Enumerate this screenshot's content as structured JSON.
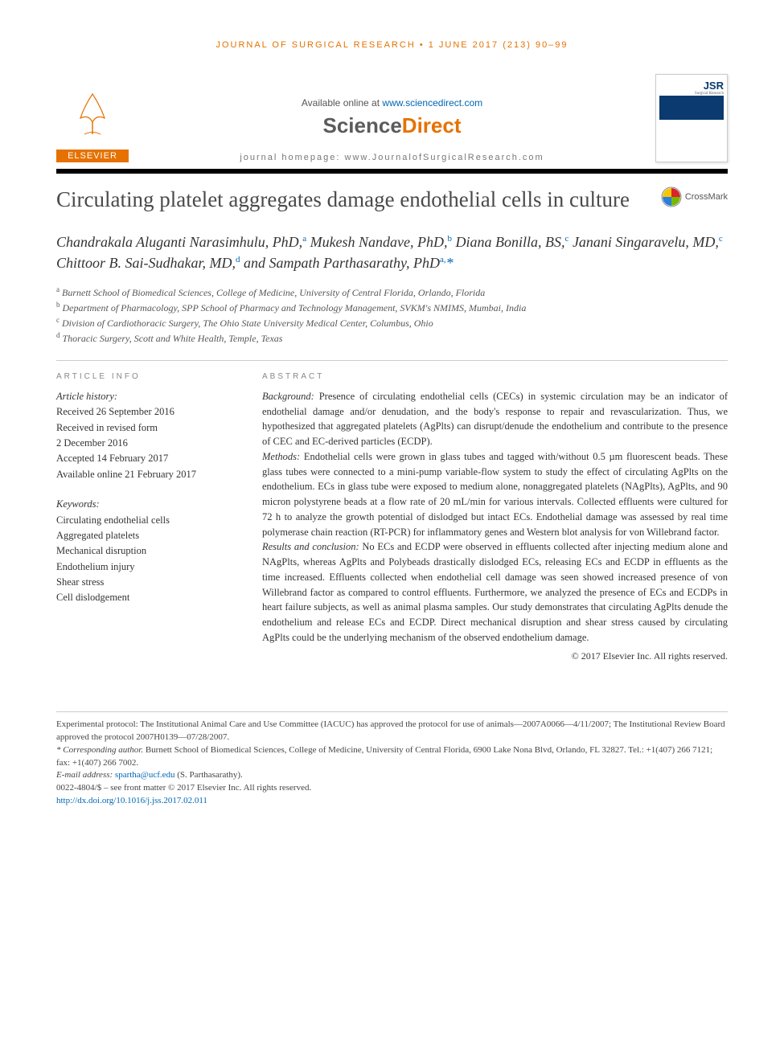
{
  "running_head": "JOURNAL OF SURGICAL RESEARCH • 1 JUNE 2017 (213) 90–99",
  "masthead": {
    "elsevier": "ELSEVIER",
    "available": "Available online at ",
    "sd_url": "www.sciencedirect.com",
    "sd_name_a": "Science",
    "sd_name_b": "Direct",
    "homepage_label": "journal homepage: ",
    "homepage_url": "www.JournalofSurgicalResearch.com",
    "jsr": "JSR",
    "jsr_sub": "Surgical Research"
  },
  "title": "Circulating platelet aggregates damage endothelial cells in culture",
  "crossmark": "CrossMark",
  "authors_html": "Chandrakala Aluganti Narasimhulu, PhD,<sup>a</sup> Mukesh Nandave, PhD,<sup>b</sup> Diana Bonilla, BS,<sup>c</sup> Janani Singaravelu, MD,<sup>c</sup> Chittoor B. Sai-Sudhakar, MD,<sup>d</sup> and Sampath Parthasarathy, PhD<sup>a,</sup><span class='ast'>*</span>",
  "affiliations": [
    {
      "sup": "a",
      "text": "Burnett School of Biomedical Sciences, College of Medicine, University of Central Florida, Orlando, Florida"
    },
    {
      "sup": "b",
      "text": "Department of Pharmacology, SPP School of Pharmacy and Technology Management, SVKM's NMIMS, Mumbai, India"
    },
    {
      "sup": "c",
      "text": "Division of Cardiothoracic Surgery, The Ohio State University Medical Center, Columbus, Ohio"
    },
    {
      "sup": "d",
      "text": "Thoracic Surgery, Scott and White Health, Temple, Texas"
    }
  ],
  "article_info_head": "ARTICLE INFO",
  "abstract_head": "ABSTRACT",
  "history_label": "Article history:",
  "history": [
    "Received 26 September 2016",
    "Received in revised form",
    "2 December 2016",
    "Accepted 14 February 2017",
    "Available online 21 February 2017"
  ],
  "keywords_label": "Keywords:",
  "keywords": [
    "Circulating endothelial cells",
    "Aggregated platelets",
    "Mechanical disruption",
    "Endothelium injury",
    "Shear stress",
    "Cell dislodgement"
  ],
  "abstract": {
    "background_label": "Background:",
    "background": " Presence of circulating endothelial cells (CECs) in systemic circulation may be an indicator of endothelial damage and/or denudation, and the body's response to repair and revascularization. Thus, we hypothesized that aggregated platelets (AgPlts) can disrupt/denude the endothelium and contribute to the presence of CEC and EC-derived particles (ECDP).",
    "methods_label": "Methods:",
    "methods": " Endothelial cells were grown in glass tubes and tagged with/without 0.5 µm fluorescent beads. These glass tubes were connected to a mini-pump variable-flow system to study the effect of circulating AgPlts on the endothelium. ECs in glass tube were exposed to medium alone, nonaggregated platelets (NAgPlts), AgPlts, and 90 micron polystyrene beads at a flow rate of 20 mL/min for various intervals. Collected effluents were cultured for 72 h to analyze the growth potential of dislodged but intact ECs. Endothelial damage was assessed by real time polymerase chain reaction (RT-PCR) for inflammatory genes and Western blot analysis for von Willebrand factor.",
    "results_label": "Results and conclusion:",
    "results": " No ECs and ECDP were observed in effluents collected after injecting medium alone and NAgPlts, whereas AgPlts and Polybeads drastically dislodged ECs, releasing ECs and ECDP in effluents as the time increased. Effluents collected when endothelial cell damage was seen showed increased presence of von Willebrand factor as compared to control effluents. Furthermore, we analyzed the presence of ECs and ECDPs in heart failure subjects, as well as animal plasma samples. Our study demonstrates that circulating AgPlts denude the endothelium and release ECs and ECDP. Direct mechanical disruption and shear stress caused by circulating AgPlts could be the underlying mechanism of the observed endothelium damage."
  },
  "copyright": "© 2017 Elsevier Inc. All rights reserved.",
  "footnotes": {
    "protocol": "Experimental protocol: The Institutional Animal Care and Use Committee (IACUC) has approved the protocol for use of animals—2007A0066—4/11/2007; The Institutional Review Board approved the protocol 2007H0139—07/28/2007.",
    "corr_label": "* Corresponding author.",
    "corr": " Burnett School of Biomedical Sciences, College of Medicine, University of Central Florida, 6900 Lake Nona Blvd, Orlando, FL 32827. Tel.: +1(407) 266 7121; fax: +1(407) 266 7002.",
    "email_label": "E-mail address: ",
    "email": "spartha@ucf.edu",
    "email_tail": " (S. Parthasarathy).",
    "issn": "0022-4804/$ – see front matter © 2017 Elsevier Inc. All rights reserved.",
    "doi": "http://dx.doi.org/10.1016/j.jss.2017.02.011"
  },
  "colors": {
    "orange": "#e57200",
    "link": "#0066b3",
    "navy": "#0a3a6f"
  }
}
